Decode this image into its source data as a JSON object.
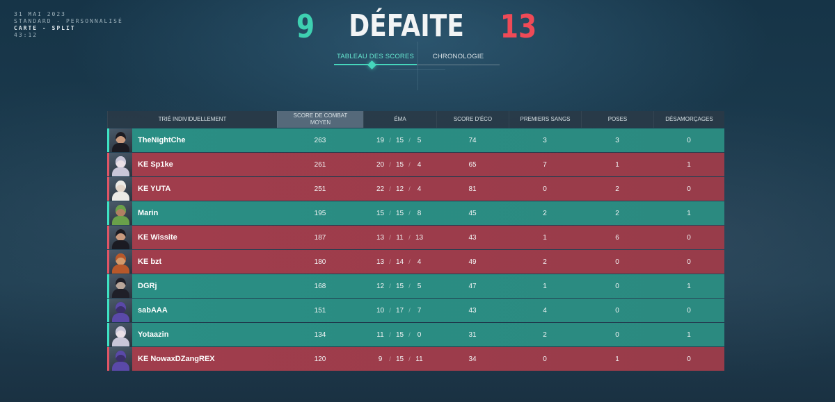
{
  "match_info": {
    "date": "31 MAI 2023",
    "mode": "STANDARD - PERSONNALISÉ",
    "map": "CARTE - SPLIT",
    "duration": "43:12"
  },
  "header": {
    "ally_score": "9",
    "result": "DÉFAITE",
    "enemy_score": "13"
  },
  "tabs": [
    {
      "label": "TABLEAU DES SCORES",
      "active": true
    },
    {
      "label": "CHRONOLOGIE",
      "active": false
    }
  ],
  "columns": {
    "sort": "TRIÉ INDIVIDUELLEMENT",
    "acs_line1": "SCORE DE COMBAT",
    "acs_line2": "MOYEN",
    "kda": "ÉMA",
    "econ": "SCORE D'ÉCO",
    "first_bloods": "PREMIERS SANGS",
    "plants": "POSES",
    "defuses": "DÉSAMORÇAGES"
  },
  "players": [
    {
      "name": "TheNightChe",
      "team": "ally",
      "acs": "263",
      "k": "19",
      "d": "15",
      "a": "5",
      "econ": "74",
      "fb": "3",
      "plants": "3",
      "defuses": "0",
      "skin": "#c99a7e",
      "hair": "#1b1b22"
    },
    {
      "name": "KE Sp1ke",
      "team": "enemy",
      "acs": "261",
      "k": "20",
      "d": "15",
      "a": "4",
      "econ": "65",
      "fb": "7",
      "plants": "1",
      "defuses": "1",
      "skin": "#e9dfe6",
      "hair": "#c9c6d8"
    },
    {
      "name": "KE YUTA",
      "team": "enemy",
      "acs": "251",
      "k": "22",
      "d": "12",
      "a": "4",
      "econ": "81",
      "fb": "0",
      "plants": "2",
      "defuses": "0",
      "skin": "#e3d5c9",
      "hair": "#eceae6"
    },
    {
      "name": "Marin",
      "team": "ally",
      "acs": "195",
      "k": "15",
      "d": "15",
      "a": "8",
      "econ": "45",
      "fb": "2",
      "plants": "2",
      "defuses": "1",
      "skin": "#b08062",
      "hair": "#6aa04a"
    },
    {
      "name": "KE Wissite",
      "team": "enemy",
      "acs": "187",
      "k": "13",
      "d": "11",
      "a": "13",
      "econ": "43",
      "fb": "1",
      "plants": "6",
      "defuses": "0",
      "skin": "#c99a7e",
      "hair": "#1b1b22"
    },
    {
      "name": "KE bzt",
      "team": "enemy",
      "acs": "180",
      "k": "13",
      "d": "14",
      "a": "4",
      "econ": "49",
      "fb": "2",
      "plants": "0",
      "defuses": "0",
      "skin": "#d39a6b",
      "hair": "#b8582a"
    },
    {
      "name": "DGRj",
      "team": "ally",
      "acs": "168",
      "k": "12",
      "d": "15",
      "a": "5",
      "econ": "47",
      "fb": "1",
      "plants": "0",
      "defuses": "1",
      "skin": "#b9a69a",
      "hair": "#1f1f28"
    },
    {
      "name": "sabAAA",
      "team": "ally",
      "acs": "151",
      "k": "10",
      "d": "17",
      "a": "7",
      "econ": "43",
      "fb": "4",
      "plants": "0",
      "defuses": "0",
      "skin": "#3b2f6a",
      "hair": "#5a49a8"
    },
    {
      "name": "Yotaazin",
      "team": "ally",
      "acs": "134",
      "k": "11",
      "d": "15",
      "a": "0",
      "econ": "31",
      "fb": "2",
      "plants": "0",
      "defuses": "1",
      "skin": "#e9dfe6",
      "hair": "#c9c6d8"
    },
    {
      "name": "KE NowaxDZangREX",
      "team": "enemy",
      "acs": "120",
      "k": "9",
      "d": "15",
      "a": "11",
      "econ": "34",
      "fb": "0",
      "plants": "1",
      "defuses": "0",
      "skin": "#3b2f6a",
      "hair": "#5a49a8"
    }
  ],
  "colors": {
    "ally": "#2a8e84",
    "enemy": "#a13d4c",
    "accent": "#46d6bc",
    "enemy_score": "#ef4a57"
  }
}
